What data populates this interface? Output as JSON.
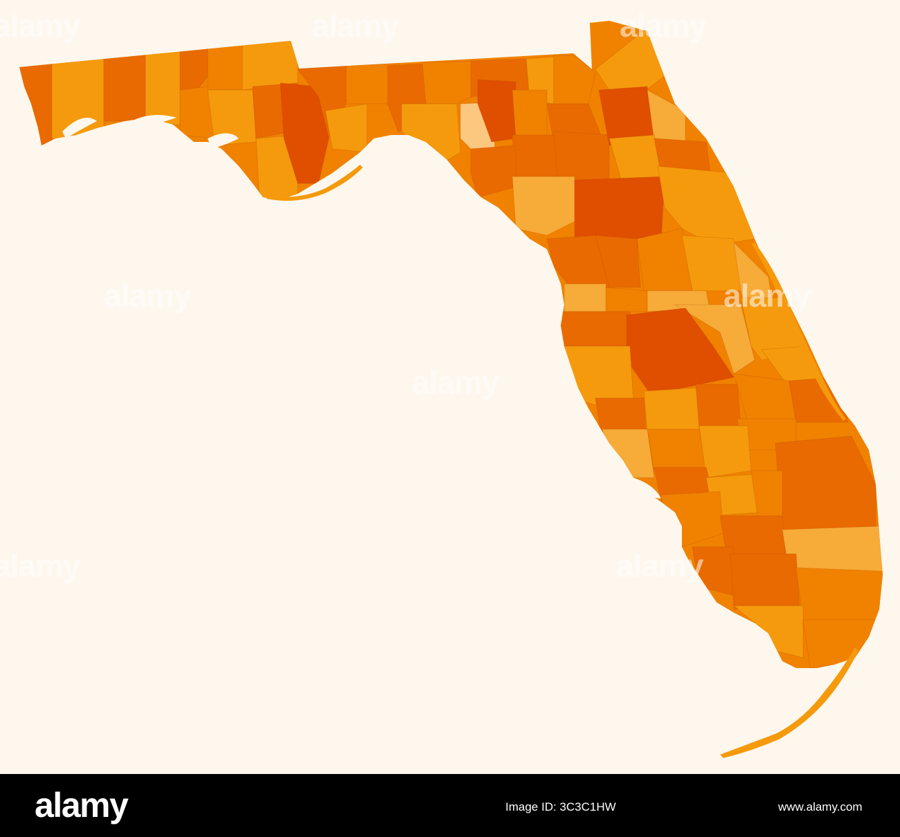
{
  "map": {
    "region": "Florida",
    "subdivision": "counties",
    "palette": {
      "background": "#fdf7ee",
      "darkest": "#e04e00",
      "dark": "#e96a00",
      "medium": "#f08200",
      "bright": "#f59a0c",
      "light": "#f7ab38",
      "lightest": "#fcc77f"
    }
  },
  "watermark": {
    "text": "alamy"
  },
  "footer": {
    "logo": "alamy",
    "image_ref": "Image ID: 3C3C1HW",
    "url": "www.alamy.com",
    "background": "#000000",
    "text_color": "#ffffff"
  }
}
